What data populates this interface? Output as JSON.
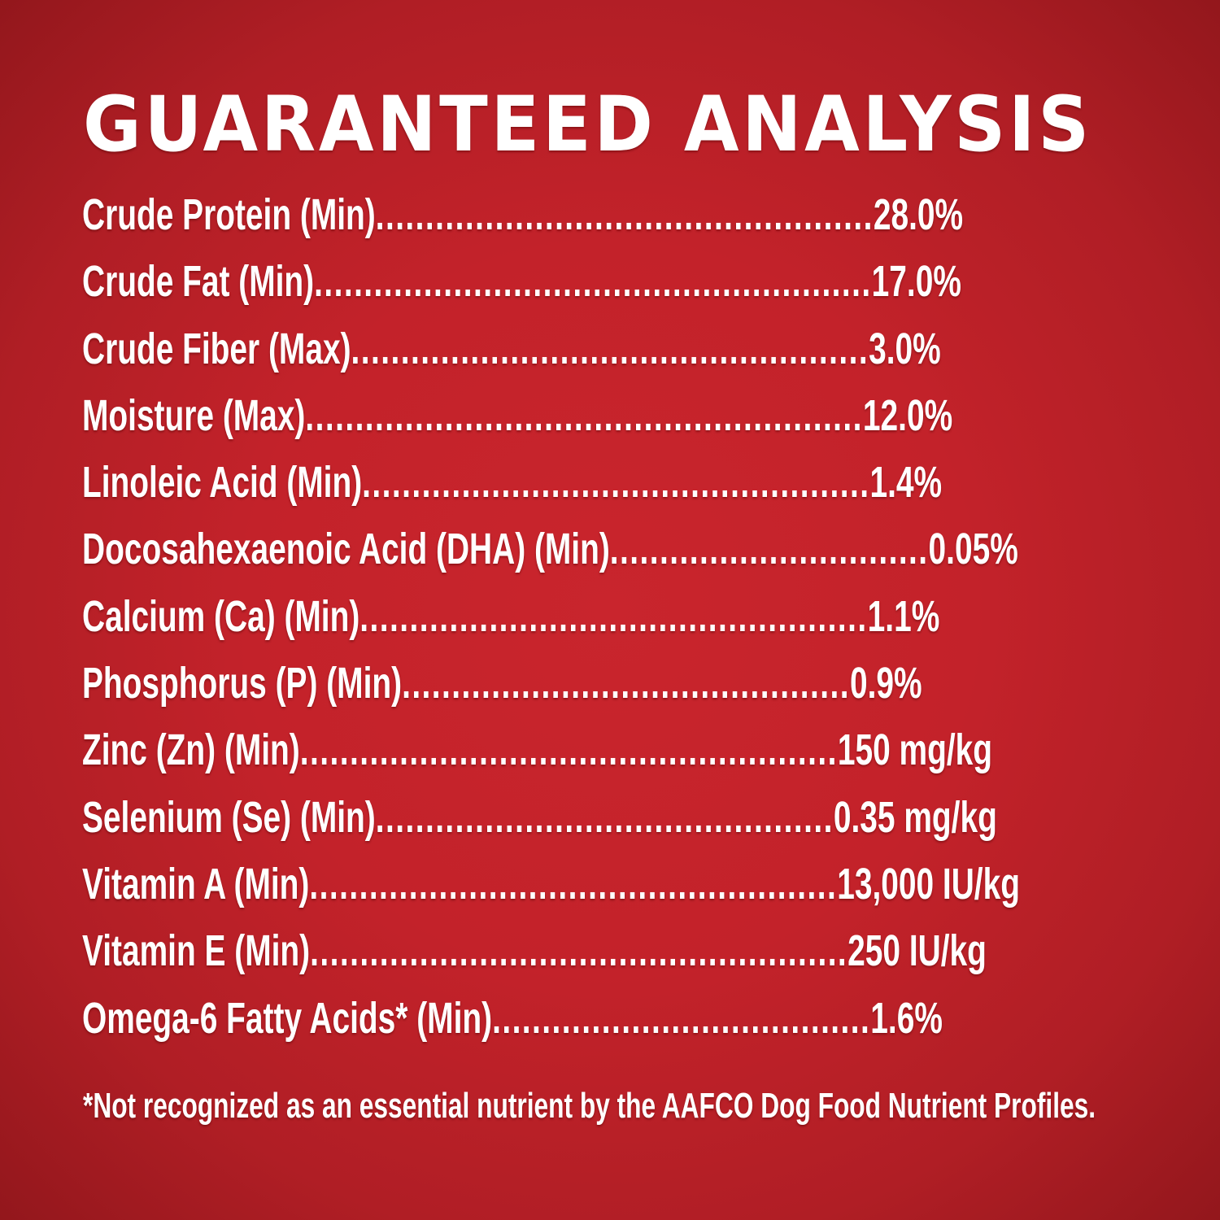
{
  "title": "GUARANTEED ANALYSIS",
  "colors": {
    "background_center": "#c9252d",
    "background_edge": "#8c151a",
    "text": "#ffffff"
  },
  "rows": [
    {
      "label": "Crude Protein (Min)",
      "leader": "..................................................",
      "value": "28.0%"
    },
    {
      "label": "Crude Fat (Min)",
      "leader": "........................................................",
      "value": "17.0%"
    },
    {
      "label": "Crude Fiber (Max)",
      "leader": "....................................................",
      "value": "3.0%"
    },
    {
      "label": "Moisture (Max)",
      "leader": "........................................................",
      "value": "12.0%"
    },
    {
      "label": "Linoleic Acid (Min)",
      "leader": "...................................................",
      "value": "1.4%"
    },
    {
      "label": "Docosahexaenoic Acid (DHA) (Min)",
      "leader": " ................................",
      "value": "0.05%"
    },
    {
      "label": "Calcium (Ca) (Min)",
      "leader": "...................................................",
      "value": "1.1%"
    },
    {
      "label": "Phosphorus (P) (Min)",
      "leader": " .............................................",
      "value": "0.9%"
    },
    {
      "label": "Zinc (Zn) (Min)",
      "leader": " ......................................................",
      "value": "150 mg/kg"
    },
    {
      "label": "Selenium (Se) (Min)",
      "leader": " ..............................................",
      "value": "0.35 mg/kg"
    },
    {
      "label": "Vitamin A (Min)",
      "leader": " .....................................................",
      "value": "13,000 IU/kg"
    },
    {
      "label": "Vitamin E (Min)",
      "leader": " ...................................................... ",
      "value": "250 IU/kg"
    },
    {
      "label": "Omega-6 Fatty Acids* (Min)",
      "leader": " ...................................... ",
      "value": "1.6%"
    }
  ],
  "footnote": "*Not recognized as an essential nutrient by the AAFCO Dog Food Nutrient Profiles."
}
